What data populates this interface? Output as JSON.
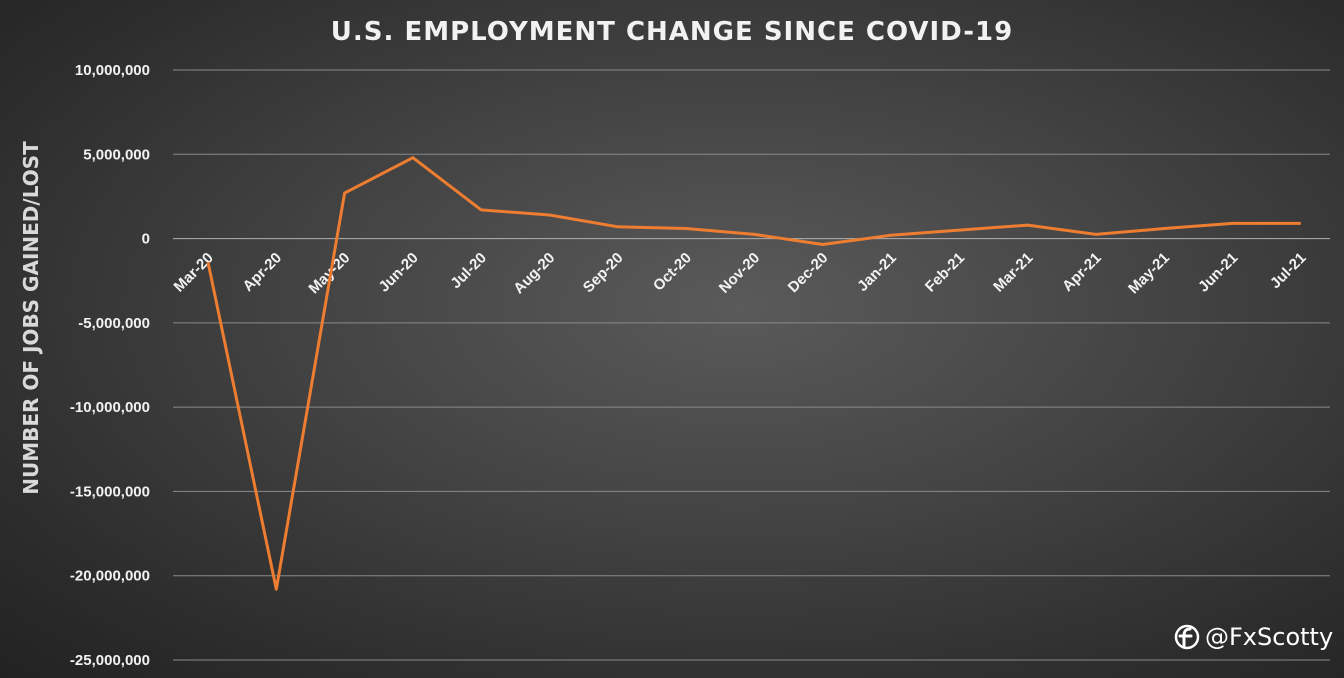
{
  "chart_data": {
    "type": "line",
    "title": "U.S. EMPLOYMENT CHANGE SINCE COVID-19",
    "ylabel": "NUMBER OF JOBS GAINED/LOST",
    "xlabel": "",
    "ylim": [
      -25000000,
      10000000
    ],
    "yticks": [
      10000000,
      5000000,
      0,
      -5000000,
      -10000000,
      -15000000,
      -20000000,
      -25000000
    ],
    "ytick_labels": [
      "10,000,000",
      "5,000,000",
      "0",
      "-5,000,000",
      "-10,000,000",
      "-15,000,000",
      "-20,000,000",
      "-25,000,000"
    ],
    "grid": true,
    "categories": [
      "Mar-20",
      "Apr-20",
      "May-20",
      "Jun-20",
      "Jul-20",
      "Aug-20",
      "Sep-20",
      "Oct-20",
      "Nov-20",
      "Dec-20",
      "Jan-21",
      "Feb-21",
      "Mar-21",
      "Apr-21",
      "May-21",
      "Jun-21",
      "Jul-21"
    ],
    "series": [
      {
        "color": "#ed7d31",
        "values": [
          -1400000,
          -20800000,
          2700000,
          4800000,
          1700000,
          1400000,
          700000,
          600000,
          250000,
          -350000,
          200000,
          500000,
          800000,
          250000,
          600000,
          900000,
          900000
        ]
      }
    ]
  },
  "watermark": {
    "text": "@FxScotty",
    "icon": "fx-logo-icon"
  }
}
